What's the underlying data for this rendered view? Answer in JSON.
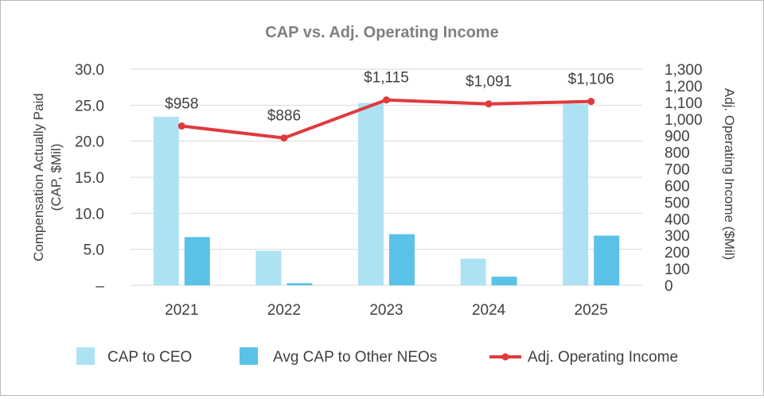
{
  "chart_data": {
    "type": "bar+line",
    "title": "CAP vs. Adj. Operating Income",
    "categories": [
      "2021",
      "2022",
      "2023",
      "2024",
      "2025"
    ],
    "series": [
      {
        "name": "CAP to CEO",
        "type": "bar",
        "axis": "left",
        "color": "#ade2f4",
        "values": [
          23.4,
          4.8,
          25.3,
          3.7,
          25.2
        ]
      },
      {
        "name": "Avg CAP to Other NEOs",
        "type": "bar",
        "axis": "left",
        "color": "#5bc2e7",
        "values": [
          6.7,
          0.3,
          7.1,
          1.2,
          6.9
        ]
      },
      {
        "name": "Adj. Operating Income",
        "type": "line",
        "axis": "right",
        "color": "#e03a3e",
        "values": [
          958,
          886,
          1115,
          1091,
          1106
        ],
        "labels": [
          "$958",
          "$886",
          "$1,115",
          "$1,091",
          "$1,106"
        ]
      }
    ],
    "y_left": {
      "label_line1": "Compensation Actually Paid",
      "label_line2": "(CAP, $Mil)",
      "lim": [
        0,
        30
      ],
      "ticks": [
        0,
        5,
        10,
        15,
        20,
        25,
        30
      ],
      "tick_labels": [
        "–",
        "5.0",
        "10.0",
        "15.0",
        "20.0",
        "25.0",
        "30.0"
      ]
    },
    "y_right": {
      "label": "Adj. Operating Income ($Mil)",
      "lim": [
        0,
        1300
      ],
      "ticks": [
        0,
        100,
        200,
        300,
        400,
        500,
        600,
        700,
        800,
        900,
        1000,
        1100,
        1200,
        1300
      ],
      "tick_labels": [
        "0",
        "100",
        "200",
        "300",
        "400",
        "500",
        "600",
        "700",
        "800",
        "900",
        "1,000",
        "1,100",
        "1,200",
        "1,300"
      ]
    },
    "grid": true,
    "legend_position": "bottom"
  }
}
